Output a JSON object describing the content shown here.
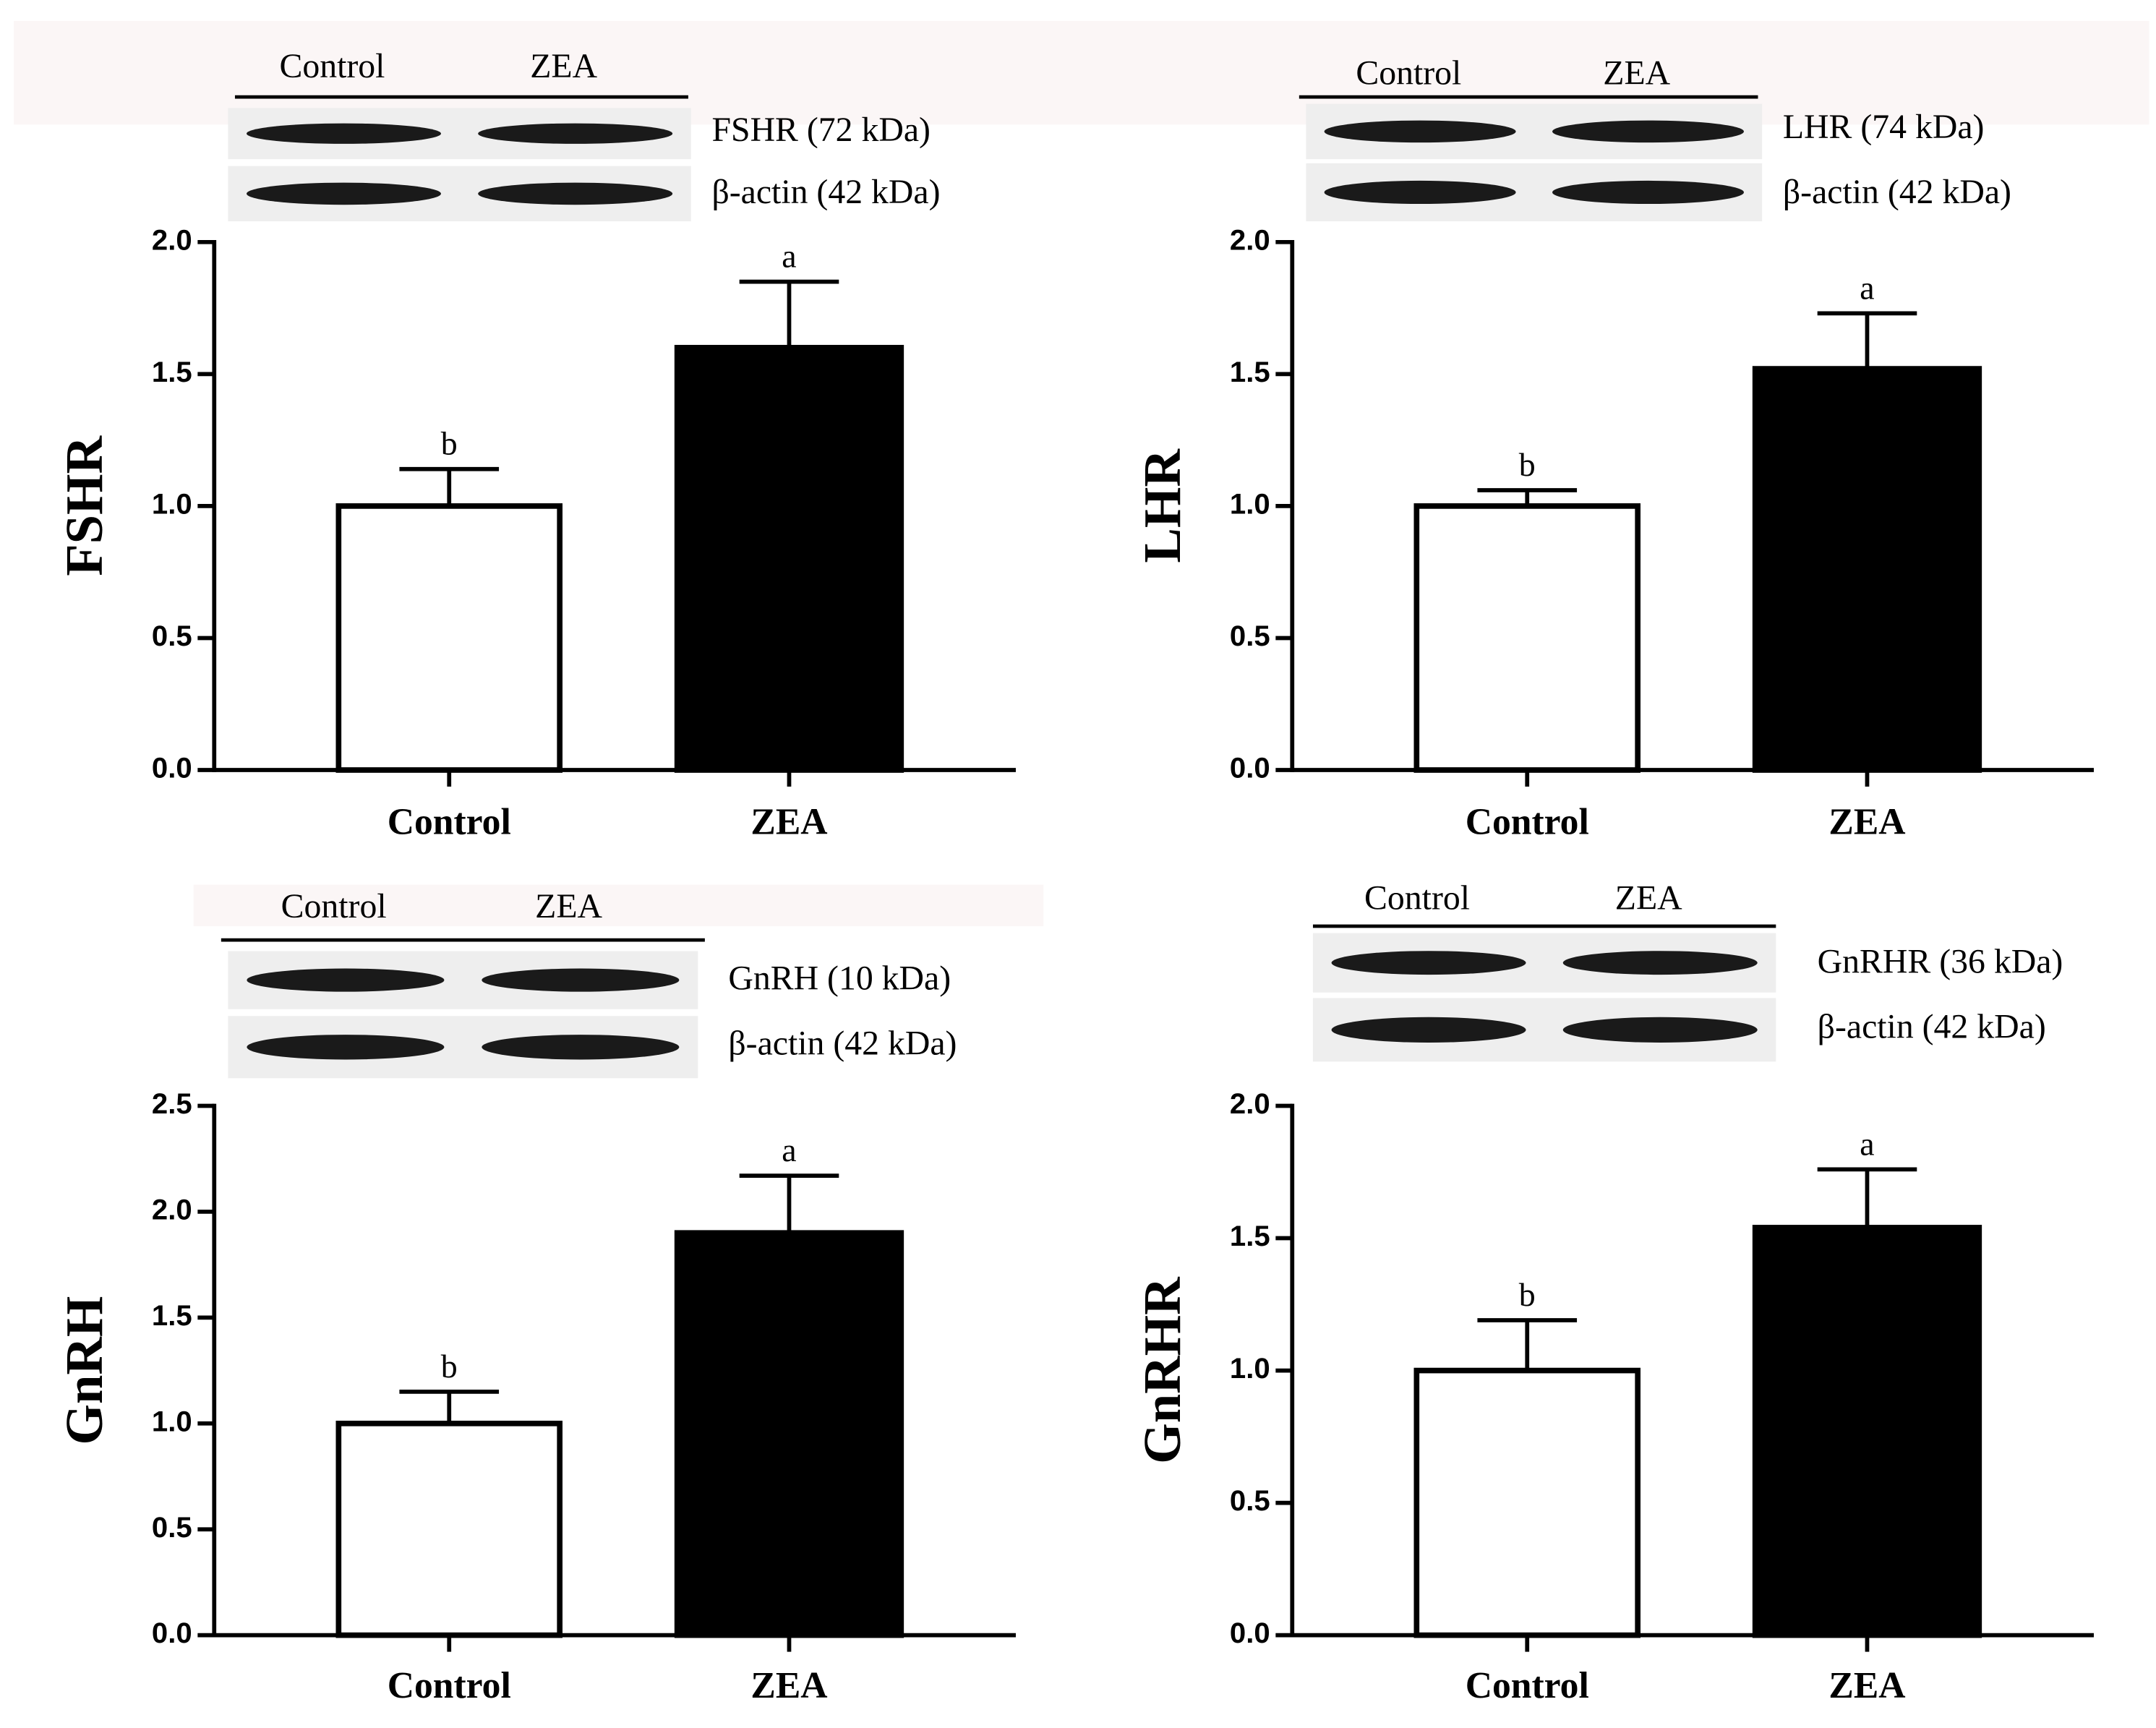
{
  "chart_data": [
    {
      "type": "bar",
      "ylabel": "FSHR",
      "categories": [
        "Control",
        "ZEA"
      ],
      "values": [
        1.0,
        1.6
      ],
      "errors": [
        0.14,
        0.25
      ],
      "letters": [
        "b",
        "a"
      ],
      "colors": [
        "#ffffff",
        "#000000"
      ],
      "ylim": [
        0,
        2
      ],
      "yticks": [
        {
          "value": 0,
          "label": "0.0"
        },
        0.5,
        {
          "value": 1,
          "label": "1.0"
        },
        1.5,
        {
          "value": 2,
          "label": "2.0"
        }
      ],
      "blot_lanes": [
        "Control",
        "ZEA"
      ],
      "blot_bands": [
        "FSHR (72 kDa)",
        "β-actin (42 kDa)"
      ]
    },
    {
      "type": "bar",
      "ylabel": "LHR",
      "categories": [
        "Control",
        "ZEA"
      ],
      "values": [
        1.0,
        1.52
      ],
      "errors": [
        0.06,
        0.21
      ],
      "letters": [
        "b",
        "a"
      ],
      "colors": [
        "#ffffff",
        "#000000"
      ],
      "ylim": [
        0,
        2
      ],
      "yticks": [
        {
          "value": 0,
          "label": "0.0"
        },
        0.5,
        {
          "value": 1,
          "label": "1.0"
        },
        1.5,
        {
          "value": 2,
          "label": "2.0"
        }
      ],
      "blot_lanes": [
        "Control",
        "ZEA"
      ],
      "blot_bands": [
        "LHR (74 kDa)",
        "β-actin (42 kDa)"
      ]
    },
    {
      "type": "bar",
      "ylabel": "GnRH",
      "categories": [
        "Control",
        "ZEA"
      ],
      "values": [
        1.0,
        1.9
      ],
      "errors": [
        0.15,
        0.27
      ],
      "letters": [
        "b",
        "a"
      ],
      "colors": [
        "#ffffff",
        "#000000"
      ],
      "ylim": [
        0,
        2.5
      ],
      "yticks": [
        {
          "value": 0,
          "label": "0.0"
        },
        0.5,
        {
          "value": 1,
          "label": "1.0"
        },
        1.5,
        {
          "value": 2,
          "label": "2.0"
        },
        2.5
      ],
      "blot_lanes": [
        "Control",
        "ZEA"
      ],
      "blot_bands": [
        "GnRH (10 kDa)",
        "β-actin (42 kDa)"
      ]
    },
    {
      "type": "bar",
      "ylabel": "GnRHR",
      "categories": [
        "Control",
        "ZEA"
      ],
      "values": [
        1.0,
        1.54
      ],
      "errors": [
        0.19,
        0.22
      ],
      "letters": [
        "b",
        "a"
      ],
      "colors": [
        "#ffffff",
        "#000000"
      ],
      "ylim": [
        0,
        2
      ],
      "yticks": [
        {
          "value": 0,
          "label": "0.0"
        },
        0.5,
        {
          "value": 1,
          "label": "1.0"
        },
        1.5,
        {
          "value": 2,
          "label": "2.0"
        }
      ],
      "blot_lanes": [
        "Control",
        "ZEA"
      ],
      "blot_bands": [
        "GnRHR (36 kDa)",
        "β-actin (42 kDa)"
      ]
    }
  ]
}
